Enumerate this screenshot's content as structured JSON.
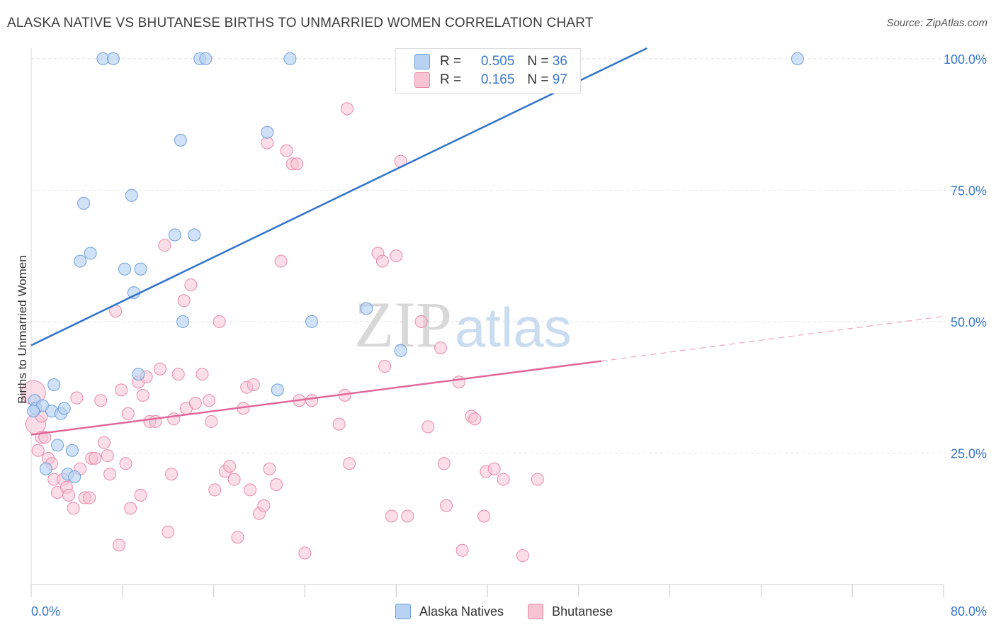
{
  "header": {
    "title": "ALASKA NATIVE VS BHUTANESE BIRTHS TO UNMARRIED WOMEN CORRELATION CHART",
    "source": "Source: ZipAtlas.com"
  },
  "legend": {
    "series": [
      {
        "r_label": "R =",
        "r_value": "0.505",
        "n_label": "N =",
        "n_value": "36"
      },
      {
        "r_label": "R =",
        "r_value": "0.165",
        "n_label": "N =",
        "n_value": "97"
      }
    ]
  },
  "bottom_legend": [
    "Alaska Natives",
    "Bhutanese"
  ],
  "watermark": {
    "zip": "ZIP",
    "atlas": "atlas"
  },
  "colors": {
    "blue_fill": "#b7d2f2",
    "blue_stroke": "#6e9fdc",
    "blue_line": "#2f73cc",
    "pink_fill": "#f8c3d3",
    "pink_stroke": "#ea8aa9",
    "pink_line": "#e2689a",
    "axis_label": "#3a78c9",
    "grid": "#e3e3e3"
  },
  "chart_data": {
    "type": "scatter",
    "title": "ALASKA NATIVE VS BHUTANESE BIRTHS TO UNMARRIED WOMEN CORRELATION CHART",
    "xlabel": "",
    "ylabel": "Births to Unmarried Women",
    "xlim": [
      0,
      80
    ],
    "ylim": [
      0,
      102
    ],
    "x_tick_labels": [
      "0.0%",
      "80.0%"
    ],
    "y_ticks": [
      25,
      50,
      75,
      100
    ],
    "y_tick_labels": [
      "25.0%",
      "50.0%",
      "75.0%",
      "100.0%"
    ],
    "grid": true,
    "series": [
      {
        "name": "Alaska Natives",
        "R": 0.505,
        "N": 36,
        "trend": {
          "x1": 0,
          "y1": 45.5,
          "x2": 54,
          "y2": 102
        },
        "points": [
          [
            0.3,
            35
          ],
          [
            0.4,
            33.5
          ],
          [
            1.0,
            34
          ],
          [
            1.8,
            33
          ],
          [
            2.0,
            38
          ],
          [
            2.3,
            26.5
          ],
          [
            2.6,
            32.5
          ],
          [
            2.9,
            33.5
          ],
          [
            1.3,
            22
          ],
          [
            3.2,
            21
          ],
          [
            3.6,
            25.5
          ],
          [
            3.8,
            20.5
          ],
          [
            4.3,
            61.5
          ],
          [
            4.6,
            72.5
          ],
          [
            5.2,
            63
          ],
          [
            6.3,
            100
          ],
          [
            7.2,
            100
          ],
          [
            8.2,
            60
          ],
          [
            8.8,
            74
          ],
          [
            9.0,
            55.5
          ],
          [
            9.4,
            40
          ],
          [
            9.6,
            60
          ],
          [
            12.6,
            66.5
          ],
          [
            13.1,
            84.5
          ],
          [
            13.3,
            50
          ],
          [
            14.3,
            66.5
          ],
          [
            14.8,
            100
          ],
          [
            15.3,
            100
          ],
          [
            20.7,
            86
          ],
          [
            21.6,
            37
          ],
          [
            22.7,
            100
          ],
          [
            24.6,
            50
          ],
          [
            29.4,
            52.5
          ],
          [
            32.4,
            44.5
          ],
          [
            67.2,
            100
          ],
          [
            0.2,
            33
          ]
        ]
      },
      {
        "name": "Bhutanese",
        "R": 0.165,
        "N": 97,
        "trend": {
          "x1": 0,
          "y1": 28.5,
          "x2": 50,
          "y2": 42.5
        },
        "trend_dashed": {
          "x1": 50,
          "x2": 80,
          "y2": 51
        },
        "points": [
          [
            0.2,
            36.5
          ],
          [
            0.4,
            30.5
          ],
          [
            0.9,
            28
          ],
          [
            1.2,
            28
          ],
          [
            1.5,
            24
          ],
          [
            1.8,
            23
          ],
          [
            2.0,
            20
          ],
          [
            2.3,
            17.5
          ],
          [
            2.8,
            20
          ],
          [
            3.1,
            18.5
          ],
          [
            3.3,
            17
          ],
          [
            3.7,
            14.5
          ],
          [
            4.0,
            35.5
          ],
          [
            4.3,
            22
          ],
          [
            4.7,
            16.5
          ],
          [
            5.1,
            16.5
          ],
          [
            5.3,
            24
          ],
          [
            5.6,
            24
          ],
          [
            6.1,
            35
          ],
          [
            6.4,
            27
          ],
          [
            6.7,
            24.5
          ],
          [
            6.9,
            21
          ],
          [
            7.4,
            52
          ],
          [
            7.7,
            7.5
          ],
          [
            7.9,
            37
          ],
          [
            8.3,
            23
          ],
          [
            8.5,
            32.5
          ],
          [
            8.7,
            14.5
          ],
          [
            9.4,
            38.5
          ],
          [
            9.6,
            17
          ],
          [
            9.8,
            36
          ],
          [
            10.1,
            39.5
          ],
          [
            10.4,
            31
          ],
          [
            10.9,
            31
          ],
          [
            11.3,
            41
          ],
          [
            11.7,
            64.5
          ],
          [
            12.0,
            10
          ],
          [
            12.3,
            21
          ],
          [
            12.5,
            31.5
          ],
          [
            12.9,
            40
          ],
          [
            13.4,
            54
          ],
          [
            13.6,
            33.5
          ],
          [
            14.0,
            57
          ],
          [
            14.4,
            34.5
          ],
          [
            15.0,
            40
          ],
          [
            15.6,
            35
          ],
          [
            15.8,
            31
          ],
          [
            16.1,
            18
          ],
          [
            16.5,
            50
          ],
          [
            17.0,
            21.5
          ],
          [
            17.4,
            22.5
          ],
          [
            17.8,
            20
          ],
          [
            18.1,
            9
          ],
          [
            18.6,
            33.5
          ],
          [
            18.9,
            37.5
          ],
          [
            19.2,
            18
          ],
          [
            19.5,
            38
          ],
          [
            20.0,
            13.5
          ],
          [
            20.4,
            15
          ],
          [
            20.7,
            84
          ],
          [
            20.9,
            22
          ],
          [
            21.5,
            19
          ],
          [
            21.9,
            61.5
          ],
          [
            22.4,
            82.5
          ],
          [
            22.9,
            80
          ],
          [
            23.3,
            80
          ],
          [
            23.5,
            35
          ],
          [
            24.0,
            6
          ],
          [
            24.6,
            35
          ],
          [
            27.0,
            30.5
          ],
          [
            27.5,
            36
          ],
          [
            27.7,
            90.5
          ],
          [
            27.9,
            23
          ],
          [
            30.4,
            63
          ],
          [
            30.8,
            61.5
          ],
          [
            31.0,
            41.5
          ],
          [
            31.6,
            13
          ],
          [
            32.0,
            62.5
          ],
          [
            32.4,
            80.5
          ],
          [
            33.0,
            13
          ],
          [
            34.2,
            50
          ],
          [
            34.8,
            30
          ],
          [
            35.9,
            45
          ],
          [
            36.2,
            23
          ],
          [
            36.4,
            15
          ],
          [
            37.5,
            38.5
          ],
          [
            37.8,
            6.5
          ],
          [
            38.6,
            32
          ],
          [
            38.9,
            31.5
          ],
          [
            39.7,
            13
          ],
          [
            39.9,
            21.5
          ],
          [
            40.6,
            22
          ],
          [
            41.4,
            20
          ],
          [
            43.1,
            5.5
          ],
          [
            44.4,
            20
          ],
          [
            0.6,
            25.5
          ],
          [
            0.9,
            32
          ]
        ]
      }
    ]
  }
}
